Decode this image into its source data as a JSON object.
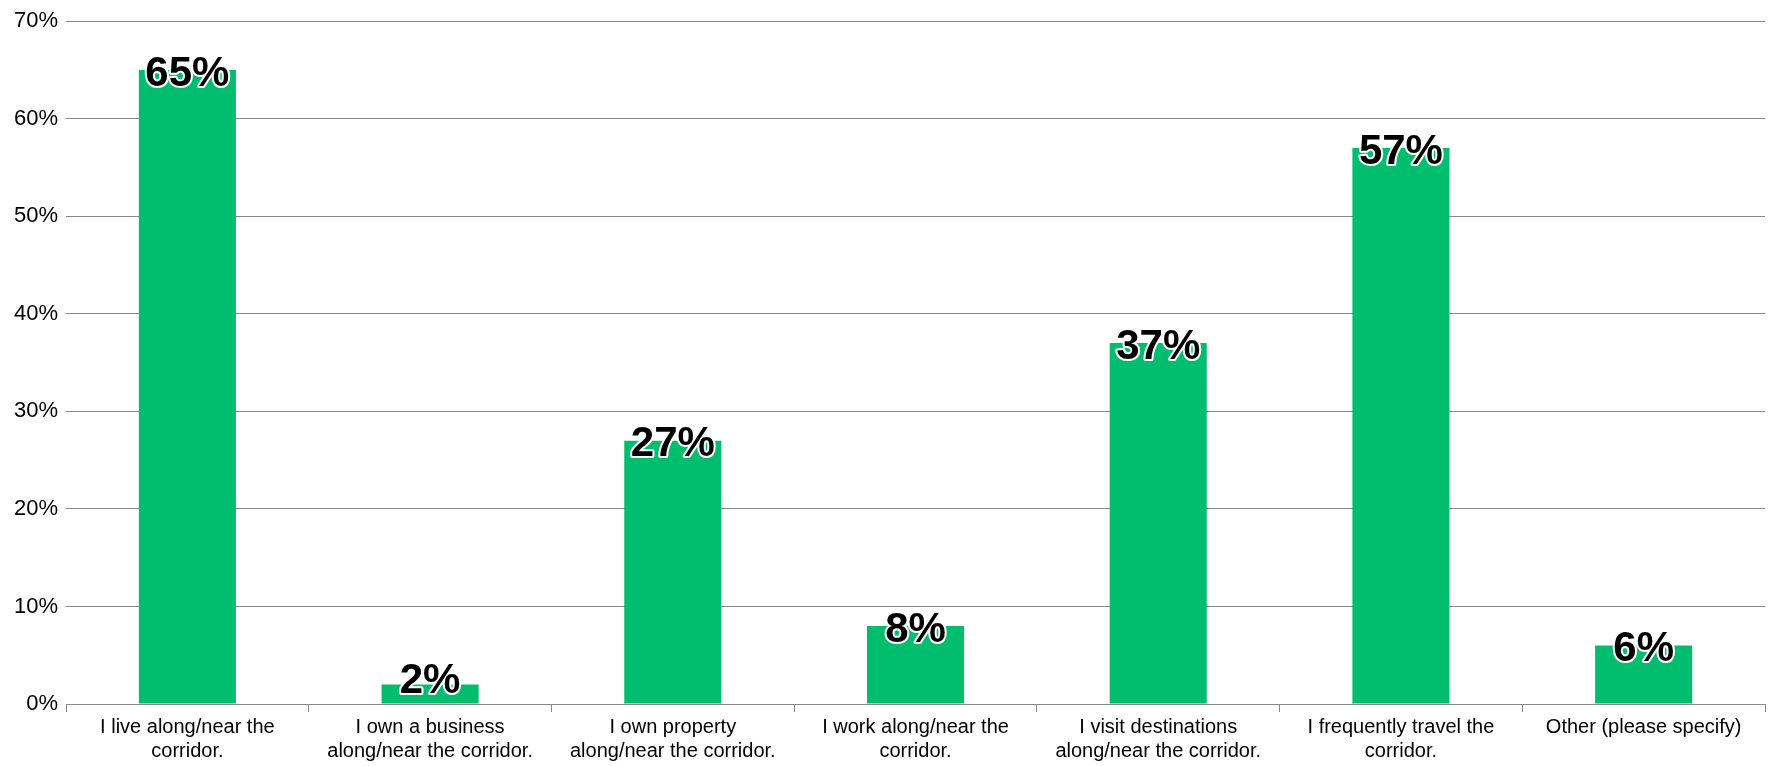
{
  "chart_data": {
    "type": "bar",
    "categories": [
      "I live along/near the corridor.",
      "I own a business along/near the corridor.",
      "I own property along/near the corridor.",
      "I work along/near the corridor.",
      "I visit destinations along/near the corridor.",
      "I frequently travel the corridor.",
      "Other (please specify)"
    ],
    "values": [
      65,
      2,
      27,
      8,
      37,
      57,
      6
    ],
    "value_labels": [
      "65%",
      "2%",
      "27%",
      "8%",
      "37%",
      "57%",
      "6%"
    ],
    "color": "#00be6e",
    "ylim": [
      0,
      70
    ],
    "yticks": [
      {
        "value": 0,
        "label": "0%"
      },
      {
        "value": 10,
        "label": "10%"
      },
      {
        "value": 20,
        "label": "20%"
      },
      {
        "value": 30,
        "label": "30%"
      },
      {
        "value": 40,
        "label": "40%"
      },
      {
        "value": 50,
        "label": "50%"
      },
      {
        "value": 60,
        "label": "60%"
      },
      {
        "value": 70,
        "label": "70%"
      }
    ],
    "grid": "y",
    "legend": false
  }
}
